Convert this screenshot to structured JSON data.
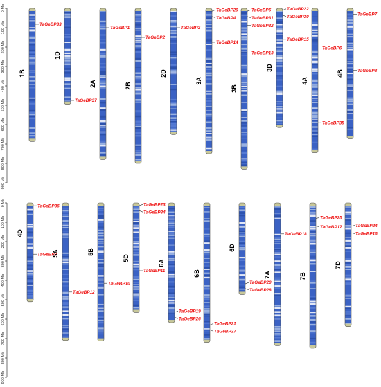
{
  "axis": {
    "unit": "Mb",
    "ticks": [
      "0 Mb",
      "100 Mb",
      "200 Mb",
      "300 Mb",
      "400 Mb",
      "500 Mb",
      "600 Mb",
      "700 Mb",
      "800 Mb",
      "900 Mb"
    ]
  },
  "colors": {
    "gene_label": "#ee1111",
    "chromosome_fill": "#3b62c4",
    "chromosome_light": "#aac0e6",
    "chromosome_end": "#c8c89a",
    "outline": "#555555"
  },
  "chromosomes": [
    {
      "id": "1B",
      "name": "1B",
      "row": 0,
      "length_mb": 687,
      "genes": [
        {
          "name": "TaGeBP33",
          "pos_mb": 82
        }
      ]
    },
    {
      "id": "1D",
      "name": "1D",
      "row": 0,
      "length_mb": 495,
      "genes": [
        {
          "name": "TaGeBP37",
          "pos_mb": 475
        }
      ]
    },
    {
      "id": "2A",
      "name": "2A",
      "row": 0,
      "length_mb": 780,
      "genes": [
        {
          "name": "TaGeBP1",
          "pos_mb": 100
        }
      ]
    },
    {
      "id": "2B",
      "name": "2B",
      "row": 0,
      "length_mb": 800,
      "genes": [
        {
          "name": "TaGeBP2",
          "pos_mb": 150
        }
      ]
    },
    {
      "id": "2D",
      "name": "2D",
      "row": 0,
      "length_mb": 651,
      "genes": [
        {
          "name": "TaGeBP3",
          "pos_mb": 100
        }
      ]
    },
    {
      "id": "3A",
      "name": "3A",
      "row": 0,
      "length_mb": 750,
      "genes": [
        {
          "name": "TaGeBP29",
          "pos_mb": 15
        },
        {
          "name": "TaGeBP4",
          "pos_mb": 42
        },
        {
          "name": "TaGeBP14",
          "pos_mb": 175
        }
      ]
    },
    {
      "id": "3B",
      "name": "3B",
      "row": 0,
      "length_mb": 830,
      "genes": [
        {
          "name": "TaGeBP5",
          "pos_mb": 15
        },
        {
          "name": "TaGeBP31",
          "pos_mb": 42
        },
        {
          "name": "TaGeBP32",
          "pos_mb": 88
        },
        {
          "name": "TaGeBP13",
          "pos_mb": 230
        }
      ]
    },
    {
      "id": "3D",
      "name": "3D",
      "row": 0,
      "length_mb": 615,
      "genes": [
        {
          "name": "TaGeBP22",
          "pos_mb": 10
        },
        {
          "name": "TaGeBP30",
          "pos_mb": 35
        },
        {
          "name": "TaGeBP15",
          "pos_mb": 160
        }
      ]
    },
    {
      "id": "4A",
      "name": "4A",
      "row": 0,
      "length_mb": 745,
      "genes": [
        {
          "name": "TaGeBP6",
          "pos_mb": 205
        },
        {
          "name": "TaGeBP35",
          "pos_mb": 590
        }
      ]
    },
    {
      "id": "4B",
      "name": "4B",
      "row": 0,
      "length_mb": 673,
      "genes": [
        {
          "name": "TaGeBP7",
          "pos_mb": 30
        },
        {
          "name": "TaGeBP8",
          "pos_mb": 320
        }
      ]
    },
    {
      "id": "4D",
      "name": "4D",
      "row": 1,
      "length_mb": 510,
      "genes": [
        {
          "name": "TaGeBP36",
          "pos_mb": 15
        },
        {
          "name": "TaGeBP9",
          "pos_mb": 265
        }
      ]
    },
    {
      "id": "5A",
      "name": "5A",
      "row": 1,
      "length_mb": 710,
      "genes": [
        {
          "name": "TaGeBP12",
          "pos_mb": 460
        }
      ]
    },
    {
      "id": "5B",
      "name": "5B",
      "row": 1,
      "length_mb": 713,
      "genes": [
        {
          "name": "TaGeBP10",
          "pos_mb": 415
        }
      ]
    },
    {
      "id": "5D",
      "name": "5D",
      "row": 1,
      "length_mb": 566,
      "genes": [
        {
          "name": "TaGeBP23",
          "pos_mb": 15
        },
        {
          "name": "TaGeBP34",
          "pos_mb": 40
        },
        {
          "name": "TaGeBP11",
          "pos_mb": 350
        }
      ]
    },
    {
      "id": "6A",
      "name": "6A",
      "row": 1,
      "length_mb": 618,
      "genes": [
        {
          "name": "TaGeBP19",
          "pos_mb": 565
        },
        {
          "name": "TaGeBP26",
          "pos_mb": 590
        }
      ]
    },
    {
      "id": "6B",
      "name": "6B",
      "row": 1,
      "length_mb": 720,
      "genes": [
        {
          "name": "TaGeBP21",
          "pos_mb": 630
        },
        {
          "name": "TaGeBP27",
          "pos_mb": 655
        }
      ]
    },
    {
      "id": "6D",
      "name": "6D",
      "row": 1,
      "length_mb": 473,
      "genes": [
        {
          "name": "TaGeBP20",
          "pos_mb": 418
        },
        {
          "name": "TaGeBP28",
          "pos_mb": 442
        }
      ]
    },
    {
      "id": "7A",
      "name": "7A",
      "row": 1,
      "length_mb": 737,
      "genes": [
        {
          "name": "TaGeBP18",
          "pos_mb": 160
        }
      ]
    },
    {
      "id": "7B",
      "name": "7B",
      "row": 1,
      "length_mb": 750,
      "genes": [
        {
          "name": "TaGeBP25",
          "pos_mb": 80
        },
        {
          "name": "TaGeBP17",
          "pos_mb": 120
        }
      ]
    },
    {
      "id": "7D",
      "name": "7D",
      "row": 1,
      "length_mb": 638,
      "genes": [
        {
          "name": "TaGeBP24",
          "pos_mb": 120
        },
        {
          "name": "TaGeBP16",
          "pos_mb": 155
        }
      ]
    }
  ]
}
